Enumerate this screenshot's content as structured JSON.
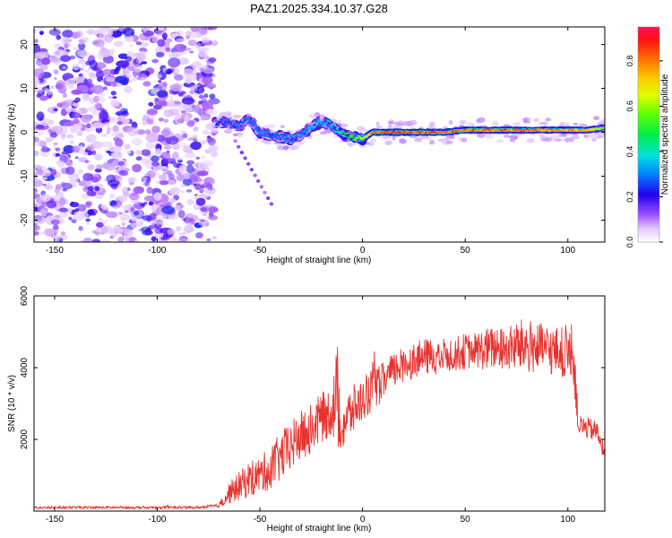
{
  "figure_title": "PAZ1.2025.334.10.37.G28",
  "chart_data": [
    {
      "type": "heatmap",
      "title": "PAZ1.2025.334.10.37.G28",
      "xlabel": "Height of straight line (km)",
      "ylabel": "Frequency (Hz)",
      "xlim": [
        -160,
        118
      ],
      "ylim": [
        -25,
        24
      ],
      "xticks": [
        -150,
        -100,
        -50,
        0,
        50,
        100
      ],
      "yticks": [
        -20,
        -10,
        0,
        10,
        20
      ],
      "noise_region_x": [
        -160,
        -72
      ],
      "signal_region_x": [
        -72,
        118
      ],
      "trace": {
        "x": [
          -72,
          -65,
          -60,
          -55,
          -50,
          -45,
          -40,
          -35,
          -30,
          -25,
          -20,
          -15,
          -10,
          -5,
          0,
          5,
          10,
          20,
          30,
          40,
          50,
          60,
          70,
          80,
          90,
          100,
          110,
          118
        ],
        "freq": [
          2.5,
          2.0,
          1.5,
          3.0,
          0.0,
          -0.5,
          -1.0,
          -1.5,
          -0.5,
          1.0,
          2.5,
          1.5,
          -0.5,
          -1.0,
          -1.5,
          0.0,
          0.0,
          0.0,
          0.0,
          0.0,
          0.5,
          0.5,
          0.5,
          0.5,
          0.5,
          0.5,
          0.5,
          1.0
        ],
        "amplitude": [
          0.25,
          0.3,
          0.3,
          0.3,
          0.35,
          0.3,
          0.35,
          0.35,
          0.35,
          0.4,
          0.35,
          0.4,
          0.45,
          0.55,
          0.7,
          0.9,
          0.95,
          0.95,
          0.9,
          0.9,
          0.9,
          0.9,
          0.9,
          0.9,
          0.85,
          0.85,
          0.8,
          0.6
        ]
      },
      "colorbar": {
        "label": "Normalized spectral amplitude",
        "range": [
          0,
          0.95
        ],
        "ticks": [
          0.0,
          0.2,
          0.4,
          0.6,
          0.8
        ],
        "tick_labels": [
          "0.0",
          "0.2",
          "0.4",
          "0.6",
          "0.8"
        ]
      }
    },
    {
      "type": "line",
      "title": "",
      "xlabel": "Height of straight line (km)",
      "ylabel": "SNR (10 * v/v)",
      "xlim": [
        -160,
        118
      ],
      "ylim": [
        0,
        6000
      ],
      "xticks": [
        -150,
        -100,
        -50,
        0,
        50,
        100
      ],
      "yticks": [
        2000,
        4000,
        6000
      ],
      "color": "#e8322e",
      "series": [
        {
          "name": "SNR",
          "x": [
            -160,
            -140,
            -120,
            -100,
            -80,
            -70,
            -65,
            -60,
            -55,
            -50,
            -45,
            -40,
            -35,
            -30,
            -25,
            -20,
            -15,
            -12,
            -10,
            -5,
            0,
            5,
            10,
            15,
            20,
            25,
            30,
            35,
            40,
            45,
            50,
            55,
            60,
            65,
            70,
            75,
            80,
            85,
            90,
            95,
            100,
            103,
            105,
            110,
            115,
            118
          ],
          "y": [
            100,
            100,
            100,
            100,
            100,
            150,
            500,
            700,
            900,
            1000,
            1200,
            1500,
            1800,
            2100,
            2300,
            2600,
            2800,
            3200,
            2400,
            2800,
            3100,
            3400,
            3600,
            3900,
            4100,
            4200,
            4300,
            4300,
            4350,
            4400,
            4450,
            4500,
            4500,
            4550,
            4500,
            4600,
            4600,
            4550,
            4500,
            4450,
            4400,
            4300,
            2400,
            2300,
            2200,
            1500
          ],
          "noise_amplitude": [
            40,
            40,
            40,
            40,
            40,
            60,
            300,
            400,
            500,
            500,
            600,
            700,
            700,
            700,
            700,
            700,
            700,
            1600,
            800,
            700,
            600,
            600,
            550,
            500,
            500,
            500,
            500,
            500,
            500,
            500,
            500,
            500,
            600,
            600,
            600,
            700,
            800,
            700,
            700,
            700,
            800,
            900,
            300,
            300,
            300,
            200
          ]
        }
      ]
    }
  ]
}
